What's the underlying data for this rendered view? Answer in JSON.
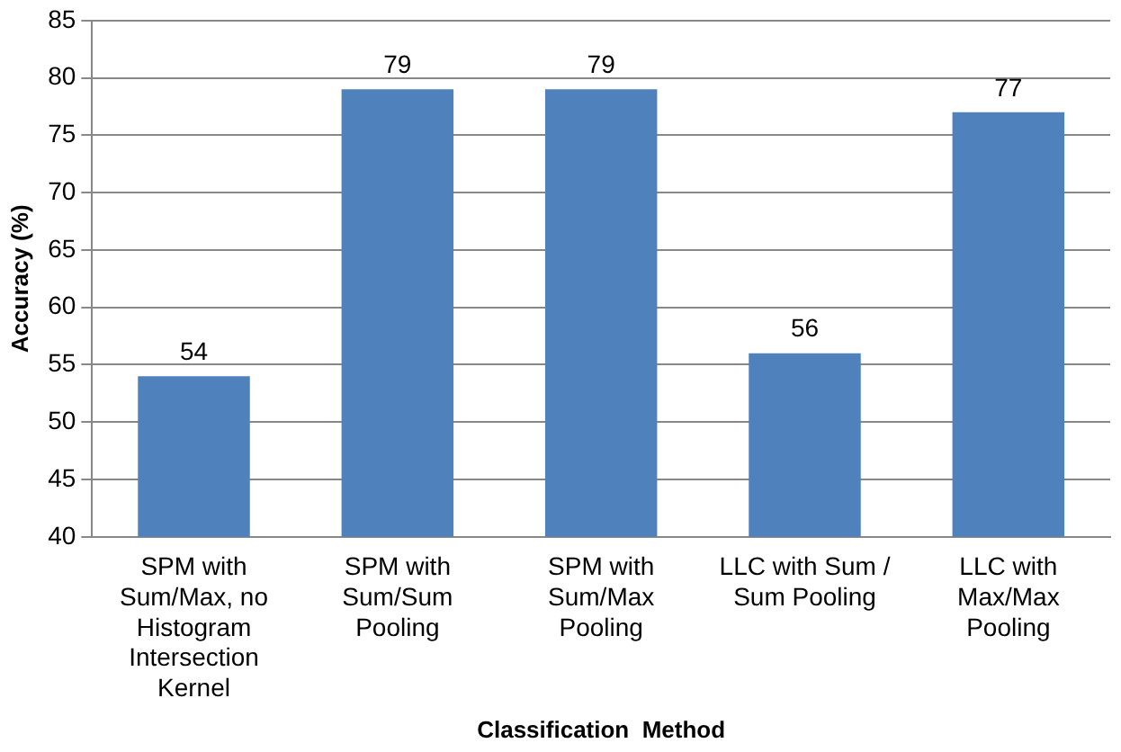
{
  "chart_data": {
    "type": "bar",
    "xlabel": "Classification  Method",
    "ylabel": "Accuracy (%)",
    "categories": [
      "SPM with Sum/Max, no Histogram Intersection Kernel",
      "SPM with Sum/Sum Pooling",
      "SPM with Sum/Max Pooling",
      "LLC with Sum / Sum Pooling",
      "LLC with Max/Max Pooling"
    ],
    "values": [
      54,
      79,
      79,
      56,
      77
    ],
    "color": "#4f81bd",
    "ylim": [
      40,
      85
    ],
    "yticks": [
      40,
      45,
      50,
      55,
      60,
      65,
      70,
      75,
      80,
      85
    ],
    "grid": "y",
    "data_labels": true
  }
}
